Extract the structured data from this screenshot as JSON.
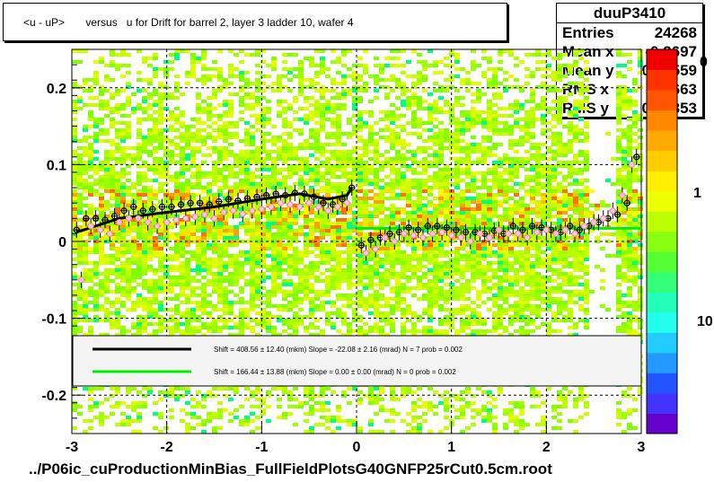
{
  "title": "<u - uP>       versus   u for Drift for barrel 2, layer 3 ladder 10, wafer 4",
  "stats": {
    "name": "duuP3410",
    "rows": [
      {
        "label": "Entries",
        "value": "24268"
      },
      {
        "label": "Mean x",
        "value": "-0.2697"
      },
      {
        "label": "Mean y",
        "value": "0.02559"
      },
      {
        "label": "RMS x",
        "value": "1.663"
      },
      {
        "label": "RMS y",
        "value": "0.09353"
      }
    ]
  },
  "footer": "../P06ic_cuProductionMinBias_FullFieldPlotsG40GNFP25rCut0.5cm.root",
  "legend": {
    "entries": [
      {
        "color": "#000000",
        "text": "Shift =   408.56 ± 12.40 (mkm) Slope =   -22.08 ± 2.16 (mrad)  N = 7 prob = 0.002"
      },
      {
        "color": "#00ee00",
        "text": "Shift =   166.44 ± 13.88 (mkm) Slope =     0.00 ± 0.00 (mrad)  N = 0 prob = 0.002"
      }
    ]
  },
  "colorbar": {
    "tick_labels": [
      "1",
      "10"
    ],
    "partial_label": "0"
  },
  "chart_data": {
    "type": "scatter",
    "title": "<u - uP>       versus   u for Drift for barrel 2, layer 3 ladder 10, wafer 4",
    "xlim": [
      -3,
      3
    ],
    "ylim": [
      -0.25,
      0.25
    ],
    "x_ticks": [
      -3,
      -2,
      -1,
      0,
      1,
      2,
      3
    ],
    "x_tick_labels": [
      "-3",
      "-2",
      "-1",
      "0",
      "1",
      "2",
      "3"
    ],
    "y_ticks": [
      -0.2,
      -0.1,
      0,
      0.1,
      0.2
    ],
    "y_tick_labels": [
      "-0.2",
      "-0.1",
      "0",
      "0.1",
      "0.2"
    ],
    "grid": true,
    "series": [
      {
        "marker": "open-circle",
        "color": "#000000",
        "x": [
          -2.95,
          -2.85,
          -2.75,
          -2.65,
          -2.55,
          -2.45,
          -2.35,
          -2.25,
          -2.15,
          -2.05,
          -1.95,
          -1.85,
          -1.75,
          -1.65,
          -1.55,
          -1.45,
          -1.35,
          -1.25,
          -1.15,
          -1.05,
          -0.95,
          -0.85,
          -0.75,
          -0.65,
          -0.55,
          -0.45,
          -0.35,
          -0.25,
          -0.15,
          -0.05,
          0.05,
          0.15,
          0.25,
          0.35,
          0.45,
          0.55,
          0.65,
          0.75,
          0.85,
          0.95,
          1.05,
          1.15,
          1.25,
          1.35,
          1.45,
          1.55,
          1.65,
          1.75,
          1.85,
          1.95,
          2.05,
          2.15,
          2.25,
          2.35,
          2.45,
          2.55,
          2.65,
          2.75,
          2.85,
          2.95
        ],
        "y": [
          0.015,
          0.03,
          0.03,
          0.028,
          0.033,
          0.04,
          0.045,
          0.04,
          0.042,
          0.045,
          0.045,
          0.048,
          0.05,
          0.05,
          0.048,
          0.052,
          0.055,
          0.053,
          0.056,
          0.058,
          0.06,
          0.062,
          0.06,
          0.063,
          0.062,
          0.058,
          0.05,
          0.048,
          0.055,
          0.07,
          -0.005,
          0.002,
          0.005,
          0.01,
          0.012,
          0.018,
          0.015,
          0.02,
          0.02,
          0.018,
          0.015,
          0.012,
          0.012,
          0.01,
          0.014,
          0.01,
          0.02,
          0.015,
          0.02,
          0.018,
          0.015,
          0.012,
          0.02,
          0.015,
          0.02,
          0.025,
          0.03,
          0.035,
          0.05,
          0.11
        ]
      },
      {
        "marker": "open-circle",
        "color": "#ff88aa",
        "x": [
          -2.9,
          -2.8,
          -2.7,
          -2.6,
          -2.5,
          -2.4,
          -2.3,
          -2.2,
          -2.1,
          -2.0,
          -1.9,
          -1.8,
          -1.7,
          -1.6,
          -1.5,
          -1.4,
          -1.3,
          -1.2,
          -1.1,
          -1.0,
          -0.9,
          -0.8,
          -0.7,
          -0.6,
          -0.5,
          -0.4,
          -0.3,
          -0.2,
          -0.1,
          0.1,
          0.2,
          0.3,
          0.4,
          0.5,
          0.6,
          0.7,
          0.8,
          0.9,
          1.0,
          1.1,
          1.2,
          1.3,
          1.4,
          1.5,
          1.6,
          1.7,
          1.8,
          1.9,
          2.0,
          2.1,
          2.2,
          2.3,
          2.4,
          2.5,
          2.6,
          2.7,
          2.8,
          2.9
        ],
        "y": [
          -0.05,
          0.02,
          0.015,
          0.01,
          0.025,
          0.03,
          0.03,
          0.025,
          0.02,
          0.025,
          0.028,
          0.03,
          0.032,
          0.035,
          0.03,
          0.038,
          0.04,
          0.036,
          0.04,
          0.042,
          0.045,
          0.05,
          0.048,
          0.045,
          0.05,
          0.045,
          0.04,
          0.045,
          0.05,
          -0.015,
          -0.01,
          0.005,
          0.0,
          0.01,
          0.008,
          0.005,
          0.01,
          0.012,
          0.008,
          0.005,
          0.0,
          0.01,
          0.005,
          0.015,
          0.01,
          0.01,
          0.005,
          0.012,
          0.015,
          0.01,
          0.015,
          0.01,
          0.02,
          0.025,
          0.03,
          0.04,
          0.06,
          0.1
        ]
      }
    ],
    "fits": [
      {
        "color": "#000000",
        "x_range": [
          -2.95,
          -0.05
        ],
        "shape": "curve",
        "y_points": [
          [
            -2.95,
            0.012
          ],
          [
            -2.5,
            0.03
          ],
          [
            -2.0,
            0.038
          ],
          [
            -1.5,
            0.045
          ],
          [
            -1.0,
            0.055
          ],
          [
            -0.6,
            0.062
          ],
          [
            -0.3,
            0.055
          ],
          [
            -0.1,
            0.06
          ],
          [
            -0.05,
            0.07
          ]
        ]
      },
      {
        "color": "#00ee00",
        "x_range": [
          0.0,
          3.0
        ],
        "shape": "line",
        "y_points": [
          [
            0.0,
            0.017
          ],
          [
            3.0,
            0.017
          ]
        ]
      }
    ]
  }
}
